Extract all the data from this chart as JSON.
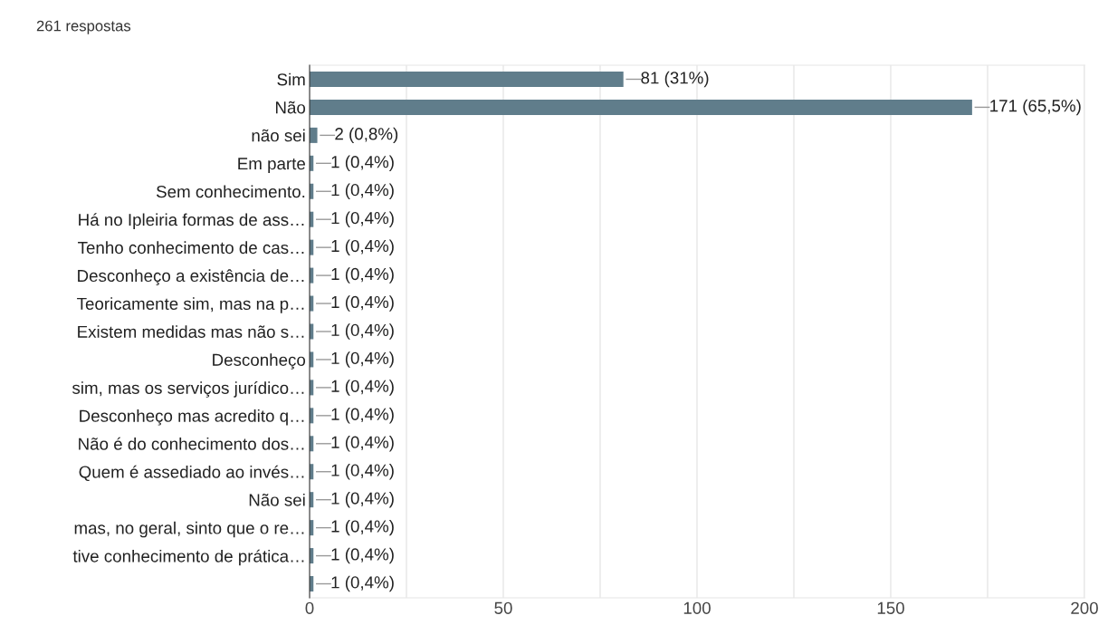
{
  "chart_data": {
    "type": "bar",
    "orientation": "horizontal",
    "title": "261 respostas",
    "categories": [
      "Sim",
      "Não",
      "não sei",
      "Em parte",
      "Sem conhecimento.",
      "Há no Ipleiria formas de ass…",
      "Tenho conhecimento de cas…",
      "Desconheço a existência de…",
      "Teoricamente sim, mas na p…",
      "Existem medidas mas não s…",
      "Desconheço",
      "sim, mas os serviços jurídico…",
      "Desconheço mas acredito q…",
      "Não é do conhecimento dos…",
      "Quem é assediado ao invés…",
      "Não sei",
      "mas, no geral, sinto que o re…",
      "tive conhecimento de prática…",
      null
    ],
    "values": [
      81,
      171,
      2,
      1,
      1,
      1,
      1,
      1,
      1,
      1,
      1,
      1,
      1,
      1,
      1,
      1,
      1,
      1,
      1
    ],
    "value_labels": [
      "81 (31%)",
      "171 (65,5%)",
      "2 (0,8%)",
      "1 (0,4%)",
      "1 (0,4%)",
      "1 (0,4%)",
      "1 (0,4%)",
      "1 (0,4%)",
      "1 (0,4%)",
      "1 (0,4%)",
      "1 (0,4%)",
      "1 (0,4%)",
      "1 (0,4%)",
      "1 (0,4%)",
      "1 (0,4%)",
      "1 (0,4%)",
      "1 (0,4%)",
      "1 (0,4%)",
      "1 (0,4%)"
    ],
    "color": "#607d8b",
    "xlim": [
      0,
      200
    ],
    "xticks": [
      0,
      {
        "value": 25,
        "label": null
      },
      50,
      {
        "value": 75,
        "label": null
      },
      100,
      {
        "value": 125,
        "label": null
      },
      150,
      {
        "value": 175,
        "label": null
      },
      200
    ],
    "grid": "x",
    "legend": false
  }
}
